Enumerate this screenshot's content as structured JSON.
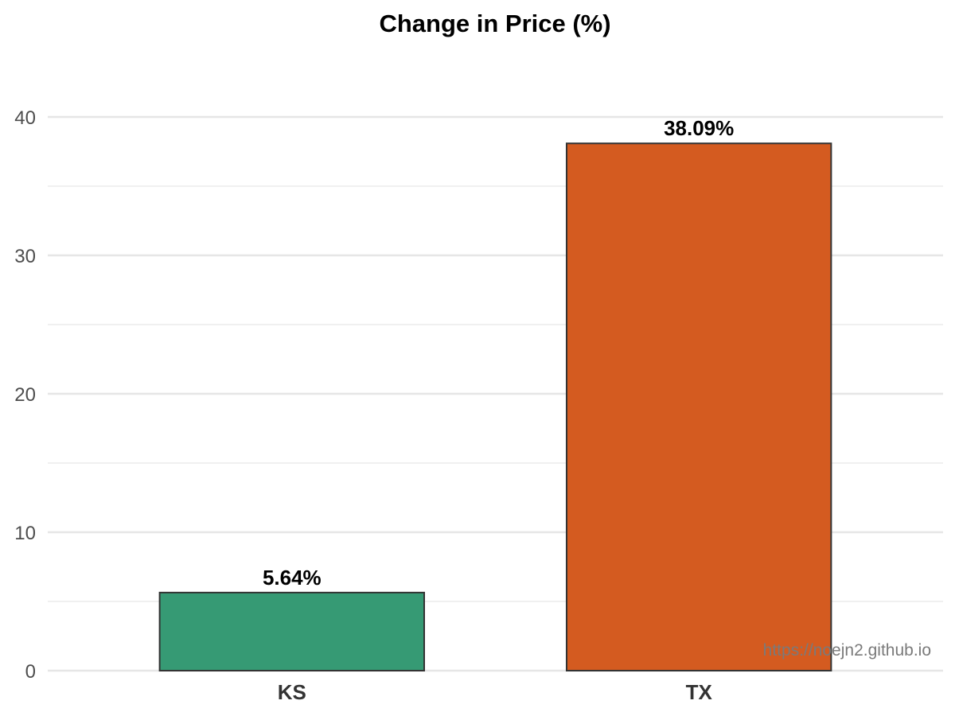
{
  "chart_data": {
    "type": "bar",
    "title": "Change in Price (%)",
    "xlabel": "",
    "ylabel": "",
    "categories": [
      "KS",
      "TX"
    ],
    "values": [
      5.64,
      38.09
    ],
    "data_labels": [
      "5.64%",
      "38.09%"
    ],
    "colors": [
      "#369a74",
      "#d45b20"
    ],
    "bar_outline_color": "#333333",
    "ylim": [
      0,
      41
    ],
    "y_ticks": [
      0,
      10,
      20,
      30,
      40
    ],
    "y_tick_labels": [
      "0",
      "10",
      "20",
      "30",
      "40"
    ],
    "y_minor_ticks": [
      5,
      15,
      25,
      35
    ],
    "grid": true,
    "legend": "none",
    "grid_color": "#e6e6e6"
  },
  "watermark": "https://noejn2.github.io"
}
